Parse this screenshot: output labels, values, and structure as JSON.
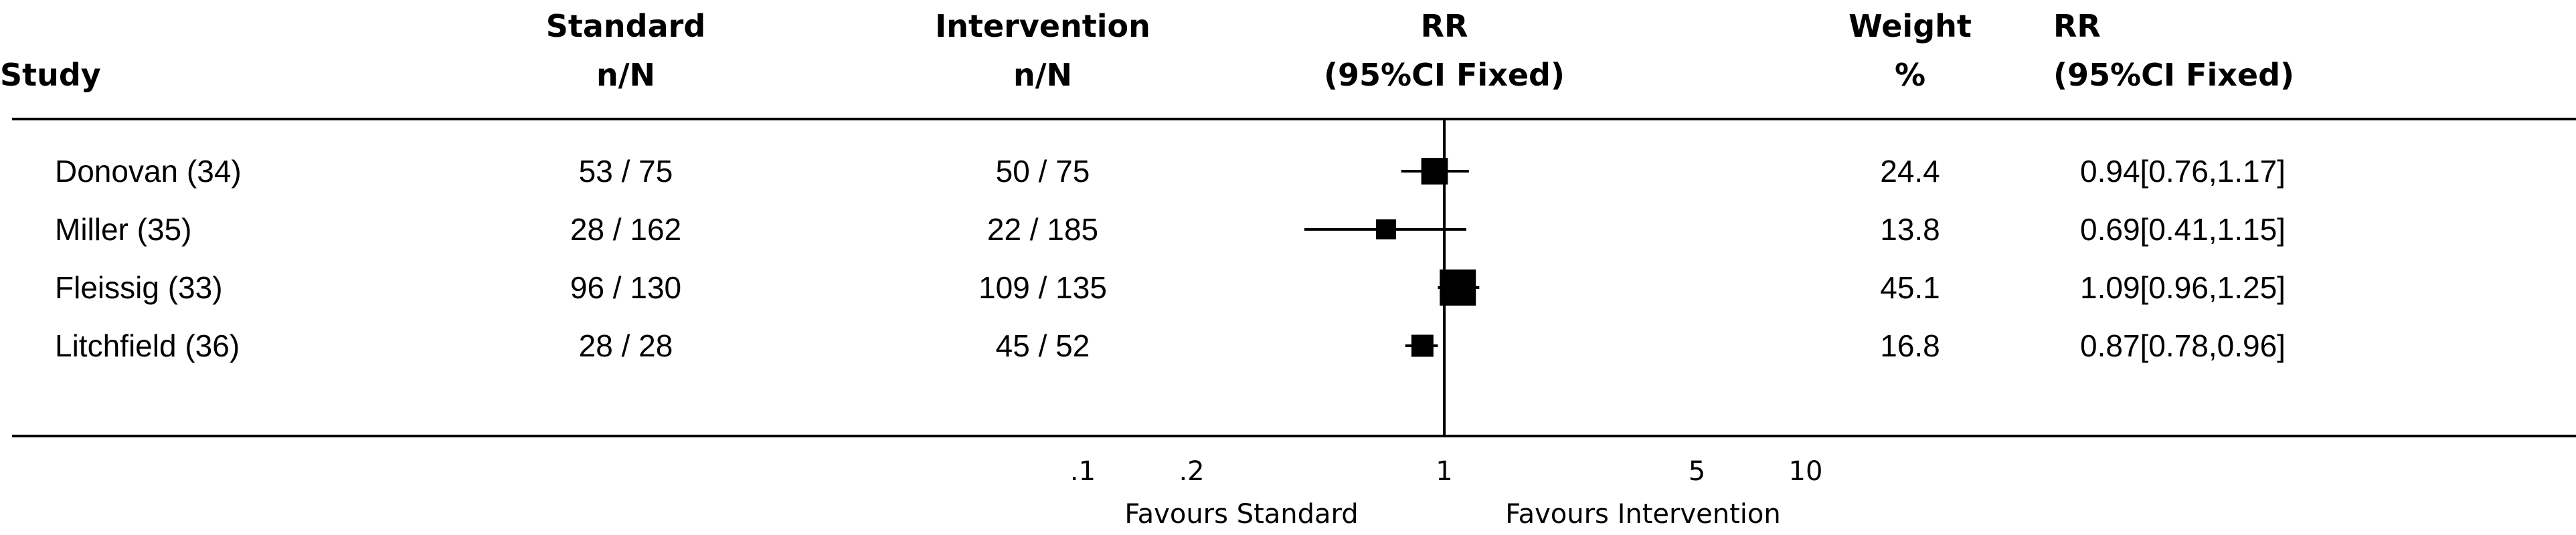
{
  "headers": {
    "study": "Study",
    "standard_line1": "Standard",
    "standard_line2": "n/N",
    "intervention_line1": "Intervention",
    "intervention_line2": "n/N",
    "rr_plot_line1": "RR",
    "rr_plot_line2": "(95%CI Fixed)",
    "weight_line1": "Weight",
    "weight_line2": "%",
    "rr_text_line1": "RR",
    "rr_text_line2": "(95%CI Fixed)"
  },
  "chart_data": {
    "type": "forest",
    "x_scale": "log",
    "xlim": [
      0.1,
      10
    ],
    "reference_line": 1,
    "x_ticks": [
      ".1",
      ".2",
      "1",
      "5",
      "10"
    ],
    "x_tick_values": [
      0.1,
      0.2,
      1,
      5,
      10
    ],
    "favours_left": "Favours Standard",
    "favours_right": "Favours Intervention",
    "studies": [
      {
        "name": "Donovan (34)",
        "standard": "53 / 75",
        "intervention": "50 / 75",
        "rr": 0.94,
        "lo": 0.76,
        "hi": 1.17,
        "weight": 24.4,
        "weight_text": "24.4",
        "rr_text": "0.94[0.76,1.17]"
      },
      {
        "name": "Miller (35)",
        "standard": "28 / 162",
        "intervention": "22 / 185",
        "rr": 0.69,
        "lo": 0.41,
        "hi": 1.15,
        "weight": 13.8,
        "weight_text": "13.8",
        "rr_text": "0.69[0.41,1.15]"
      },
      {
        "name": "Fleissig (33)",
        "standard": "96 / 130",
        "intervention": "109 / 135",
        "rr": 1.09,
        "lo": 0.96,
        "hi": 1.25,
        "weight": 45.1,
        "weight_text": "45.1",
        "rr_text": "1.09[0.96,1.25]"
      },
      {
        "name": "Litchfield (36)",
        "standard": "28 / 28",
        "intervention": "45 / 52",
        "rr": 0.87,
        "lo": 0.78,
        "hi": 0.96,
        "weight": 16.8,
        "weight_text": "16.8",
        "rr_text": "0.87[0.78,0.96]"
      }
    ]
  }
}
